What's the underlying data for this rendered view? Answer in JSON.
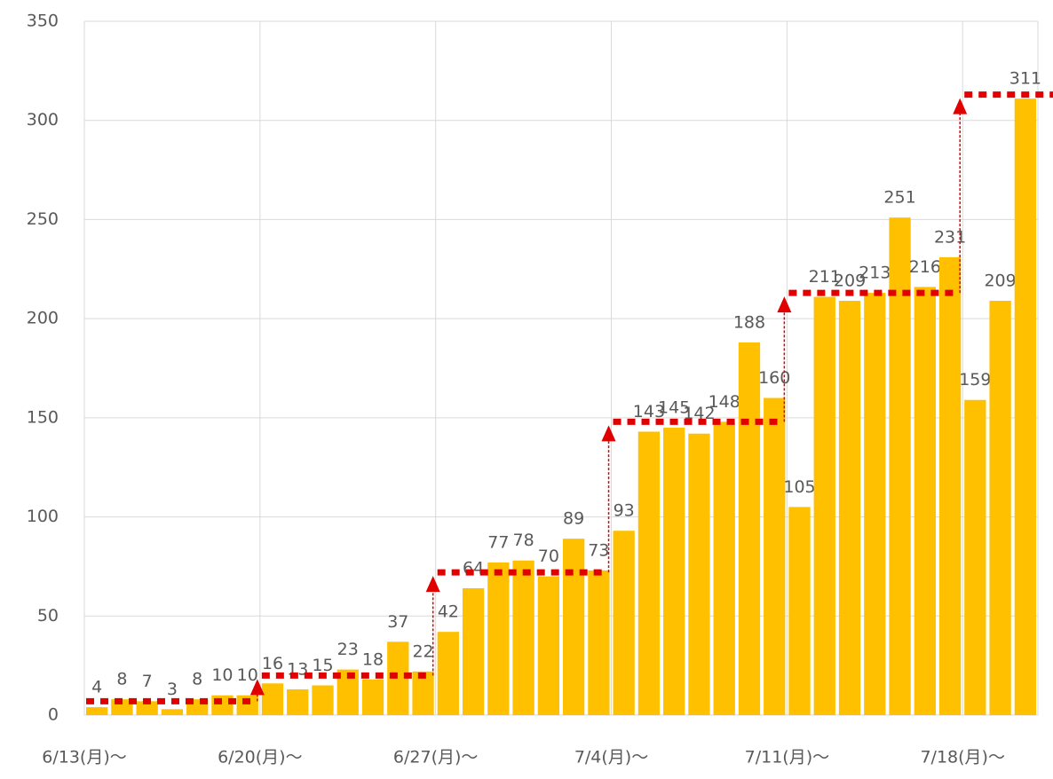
{
  "chart_data": {
    "type": "bar",
    "categories": [
      "6/13(月)～",
      null,
      null,
      null,
      null,
      null,
      null,
      "6/20(月)～",
      null,
      null,
      null,
      null,
      null,
      null,
      "6/27(月)～",
      null,
      null,
      null,
      null,
      null,
      null,
      "7/4(月)～",
      null,
      null,
      null,
      null,
      null,
      null,
      "7/11(月)～",
      null,
      null,
      null,
      null,
      null,
      null,
      "7/18(月)～",
      null,
      null
    ],
    "values": [
      4,
      8,
      7,
      3,
      8,
      10,
      10,
      16,
      13,
      15,
      23,
      18,
      37,
      22,
      42,
      64,
      77,
      78,
      70,
      89,
      73,
      93,
      143,
      145,
      142,
      148,
      188,
      160,
      105,
      211,
      209,
      213,
      251,
      216,
      231,
      159,
      209,
      311
    ],
    "color": "#ffc000",
    "averages": [
      7,
      20,
      72,
      148,
      213,
      313
    ],
    "averages_color": "#e00000",
    "ylim": [
      0,
      350
    ],
    "yticks": [
      0,
      50,
      100,
      150,
      200,
      250,
      300,
      350
    ],
    "grid": true
  }
}
